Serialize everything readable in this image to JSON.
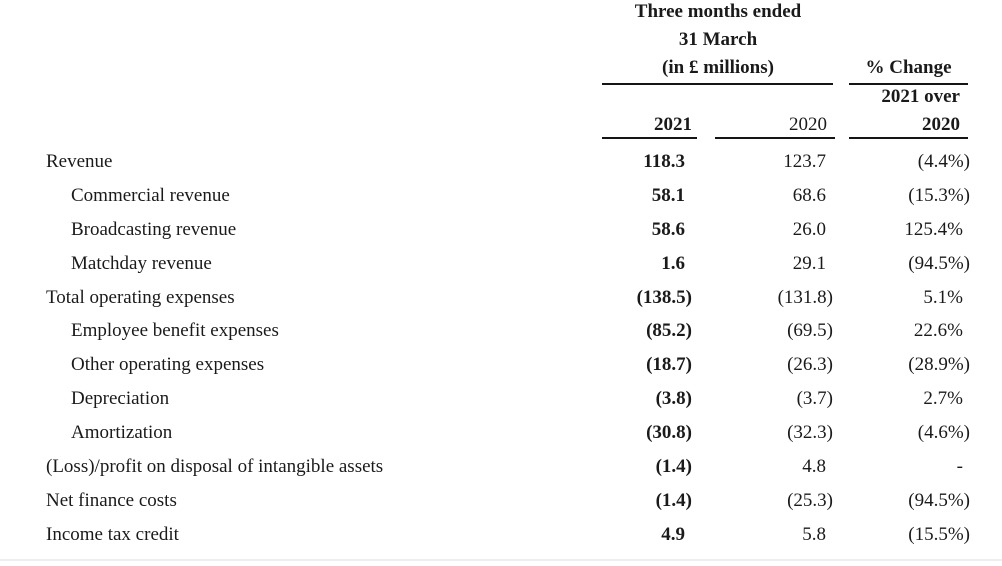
{
  "header": {
    "period_line1": "Three months ended",
    "period_line2": "31 March",
    "period_line3": "(in £ millions)",
    "pct_change_label": "% Change",
    "pct_change_sub1": "2021 over",
    "pct_change_sub2": "2020",
    "col_2021": "2021",
    "col_2020": "2020"
  },
  "table": {
    "rows": [
      {
        "label": "Revenue",
        "indent": false,
        "y2021": "118.3",
        "y2020": "123.7",
        "change": "(4.4%)"
      },
      {
        "label": "Commercial revenue",
        "indent": true,
        "y2021": "58.1",
        "y2020": "68.6",
        "change": "(15.3%)"
      },
      {
        "label": "Broadcasting revenue",
        "indent": true,
        "y2021": "58.6",
        "y2020": "26.0",
        "change": "125.4%"
      },
      {
        "label": "Matchday revenue",
        "indent": true,
        "y2021": "1.6",
        "y2020": "29.1",
        "change": "(94.5%)"
      },
      {
        "label": "Total operating expenses",
        "indent": false,
        "y2021": "(138.5)",
        "y2020": "(131.8)",
        "change": "5.1%"
      },
      {
        "label": "Employee benefit expenses",
        "indent": true,
        "y2021": "(85.2)",
        "y2020": "(69.5)",
        "change": "22.6%"
      },
      {
        "label": "Other operating expenses",
        "indent": true,
        "y2021": "(18.7)",
        "y2020": "(26.3)",
        "change": "(28.9%)"
      },
      {
        "label": "Depreciation",
        "indent": true,
        "y2021": "(3.8)",
        "y2020": "(3.7)",
        "change": "2.7%"
      },
      {
        "label": "Amortization",
        "indent": true,
        "y2021": "(30.8)",
        "y2020": "(32.3)",
        "change": "(4.6%)"
      },
      {
        "label": "(Loss)/profit on disposal of intangible assets",
        "indent": false,
        "y2021": "(1.4)",
        "y2020": "4.8",
        "change": "-"
      },
      {
        "label": "Net finance costs",
        "indent": false,
        "y2021": "(1.4)",
        "y2020": "(25.3)",
        "change": "(94.5%)"
      },
      {
        "label": "Income tax credit",
        "indent": false,
        "y2021": "4.9",
        "y2020": "5.8",
        "change": "(15.5%)"
      }
    ]
  },
  "colors": {
    "text": "#1a1a1a",
    "rule": "#151515",
    "footer_rule": "#efeeec"
  }
}
